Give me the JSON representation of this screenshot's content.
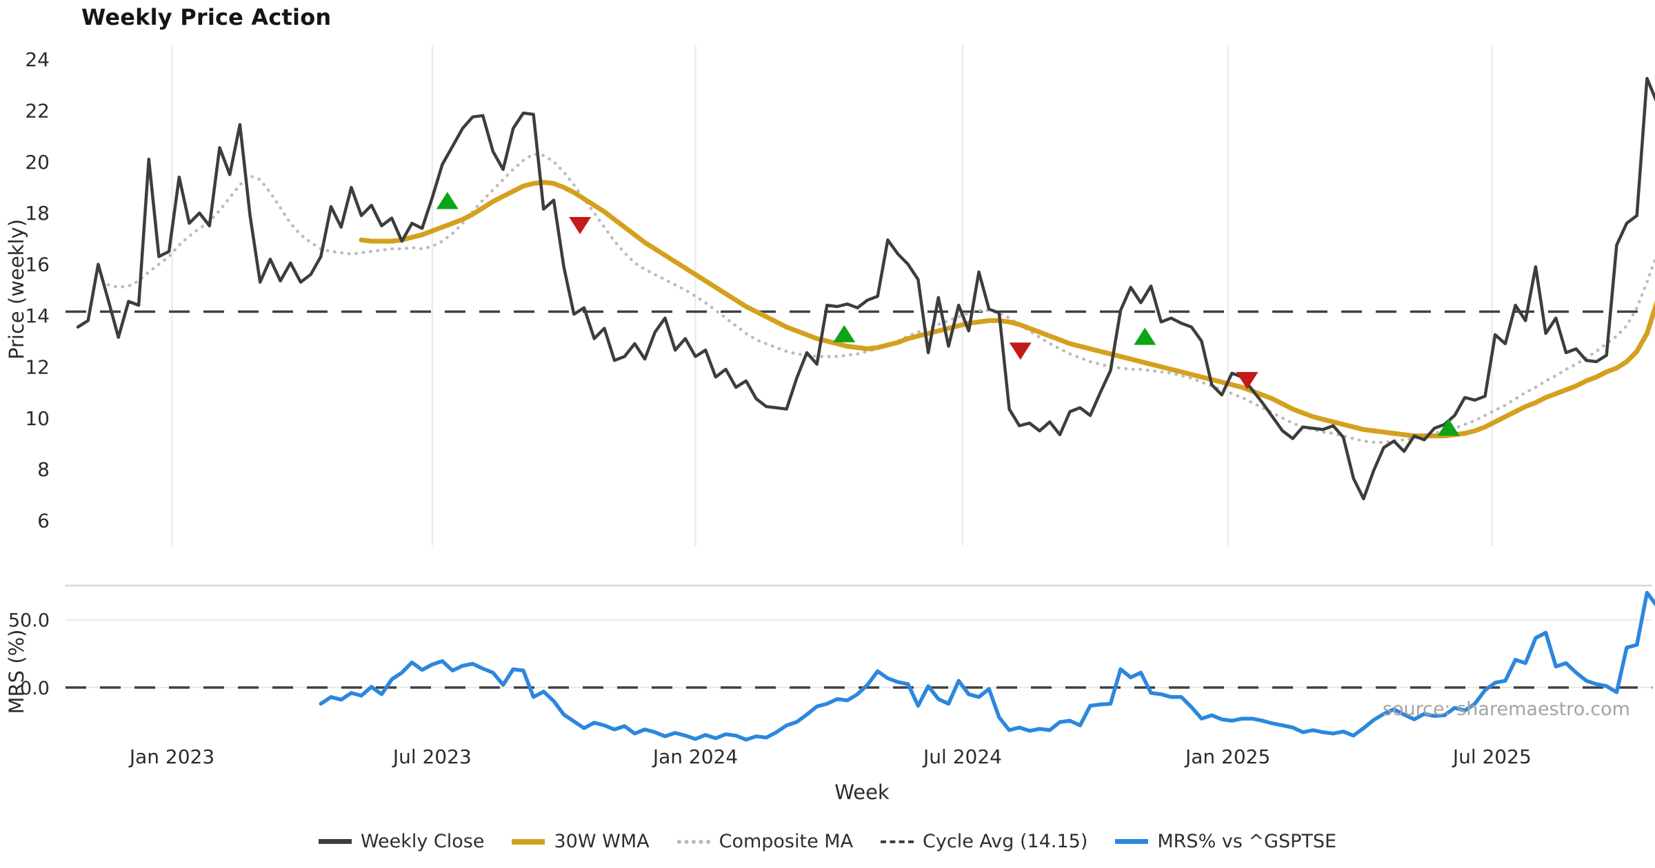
{
  "title": "Weekly Price Action",
  "source_note": "source: sharemaestro.com",
  "colors": {
    "weekly_close": "#3d3d3d",
    "wma_30w": "#d4a01e",
    "composite_ma": "#bcbcbc",
    "cycle_avg": "#3f3f3f",
    "mrs": "#2c87dd",
    "buy_marker": "#0fa318",
    "sell_marker": "#c41a1a",
    "gridline": "#e8e8e8",
    "separator": "#d8d8d8",
    "tick_text": "#2b2b2b",
    "source_text": "#a3a3a3"
  },
  "legend": {
    "items": [
      {
        "label": "Weekly Close",
        "style": "solid-dark"
      },
      {
        "label": "30W WMA",
        "style": "solid-gold"
      },
      {
        "label": "Composite MA",
        "style": "dotted-gray"
      },
      {
        "label": "Cycle Avg (14.15)",
        "style": "dashed-dark"
      },
      {
        "label": "MRS% vs ^GSPTSE",
        "style": "solid-blue"
      }
    ]
  },
  "chart_data": {
    "type": "line",
    "x_axis": {
      "label": "Week",
      "ticks": [
        {
          "week": 9.3,
          "label": "Jan 2023"
        },
        {
          "week": 35.0,
          "label": "Jul 2023"
        },
        {
          "week": 61.0,
          "label": "Jan 2024"
        },
        {
          "week": 87.4,
          "label": "Jul 2024"
        },
        {
          "week": 113.6,
          "label": "Jan 2025"
        },
        {
          "week": 139.7,
          "label": "Jul 2025"
        }
      ]
    },
    "price_panel": {
      "ylabel": "Price (weekly)",
      "yticks": [
        24,
        22,
        20,
        18,
        16,
        14,
        12,
        10,
        8,
        6
      ],
      "ylim": [
        5.5,
        24.5
      ],
      "cycle_avg": 14.15,
      "series": {
        "weekly_close": {
          "name": "Weekly Close",
          "start_week": 0,
          "values": [
            13.55,
            13.8,
            16.0,
            14.6,
            13.15,
            14.55,
            14.4,
            20.1,
            16.3,
            16.5,
            19.4,
            17.6,
            18.0,
            17.5,
            20.55,
            19.5,
            21.45,
            17.9,
            15.3,
            16.2,
            15.35,
            16.05,
            15.3,
            15.6,
            16.3,
            18.25,
            17.45,
            19.0,
            17.9,
            18.3,
            17.5,
            17.8,
            16.9,
            17.6,
            17.4,
            18.6,
            19.9,
            20.6,
            21.3,
            21.75,
            21.8,
            20.4,
            19.7,
            21.3,
            21.9,
            21.85,
            18.15,
            18.5,
            15.9,
            14.05,
            14.3,
            13.1,
            13.5,
            12.25,
            12.4,
            12.9,
            12.3,
            13.35,
            13.9,
            12.65,
            13.1,
            12.4,
            12.65,
            11.6,
            11.9,
            11.2,
            11.45,
            10.75,
            10.45,
            10.4,
            10.35,
            11.55,
            12.55,
            12.1,
            14.4,
            14.35,
            14.45,
            14.3,
            14.6,
            14.75,
            16.95,
            16.4,
            16.0,
            15.4,
            12.55,
            14.7,
            12.8,
            14.4,
            13.4,
            15.7,
            14.25,
            14.1,
            10.35,
            9.7,
            9.8,
            9.5,
            9.85,
            9.35,
            10.25,
            10.4,
            10.1,
            11.0,
            11.85,
            14.2,
            15.1,
            14.5,
            15.15,
            13.75,
            13.9,
            13.7,
            13.55,
            13.0,
            11.3,
            10.9,
            11.75,
            11.6,
            11.1,
            10.6,
            10.05,
            9.5,
            9.2,
            9.65,
            9.6,
            9.55,
            9.7,
            9.25,
            7.65,
            6.85,
            7.95,
            8.85,
            9.1,
            8.7,
            9.3,
            9.15,
            9.6,
            9.75,
            10.1,
            10.8,
            10.7,
            10.85,
            13.25,
            12.9,
            14.4,
            13.8,
            15.9,
            13.3,
            13.9,
            12.55,
            12.7,
            12.25,
            12.2,
            12.45,
            16.75,
            17.6,
            17.9,
            23.25,
            22.3
          ]
        },
        "wma_30w": {
          "name": "30W WMA",
          "start_week": 28,
          "values": [
            16.95,
            16.9,
            16.9,
            16.9,
            16.95,
            17.05,
            17.15,
            17.3,
            17.45,
            17.6,
            17.75,
            17.95,
            18.2,
            18.45,
            18.65,
            18.85,
            19.05,
            19.15,
            19.2,
            19.15,
            19.0,
            18.8,
            18.55,
            18.3,
            18.05,
            17.75,
            17.45,
            17.15,
            16.85,
            16.6,
            16.35,
            16.1,
            15.85,
            15.6,
            15.35,
            15.1,
            14.85,
            14.6,
            14.35,
            14.15,
            13.95,
            13.75,
            13.55,
            13.4,
            13.25,
            13.1,
            13.0,
            12.9,
            12.8,
            12.75,
            12.7,
            12.75,
            12.85,
            12.95,
            13.1,
            13.2,
            13.3,
            13.4,
            13.5,
            13.6,
            13.7,
            13.75,
            13.8,
            13.8,
            13.75,
            13.65,
            13.5,
            13.35,
            13.2,
            13.05,
            12.9,
            12.8,
            12.7,
            12.6,
            12.5,
            12.4,
            12.3,
            12.2,
            12.1,
            12.0,
            11.9,
            11.8,
            11.7,
            11.6,
            11.5,
            11.4,
            11.3,
            11.2,
            11.05,
            10.9,
            10.75,
            10.55,
            10.35,
            10.2,
            10.05,
            9.95,
            9.85,
            9.75,
            9.65,
            9.55,
            9.5,
            9.45,
            9.4,
            9.35,
            9.3,
            9.3,
            9.3,
            9.3,
            9.35,
            9.4,
            9.5,
            9.65,
            9.85,
            10.05,
            10.25,
            10.45,
            10.6,
            10.8,
            10.95,
            11.1,
            11.25,
            11.45,
            11.6,
            11.8,
            11.95,
            12.2,
            12.6,
            13.3,
            14.55
          ]
        },
        "composite_ma": {
          "name": "Composite MA",
          "start_week": 3,
          "values": [
            15.2,
            15.1,
            15.15,
            15.35,
            15.7,
            16.0,
            16.3,
            16.75,
            17.1,
            17.4,
            17.65,
            18.1,
            18.6,
            19.1,
            19.45,
            19.3,
            18.8,
            18.2,
            17.6,
            17.15,
            16.85,
            16.6,
            16.5,
            16.45,
            16.4,
            16.45,
            16.5,
            16.55,
            16.6,
            16.6,
            16.65,
            16.6,
            16.7,
            16.9,
            17.2,
            17.6,
            18.05,
            18.5,
            18.9,
            19.3,
            19.7,
            20.05,
            20.3,
            20.25,
            20.0,
            19.6,
            19.1,
            18.55,
            18.0,
            17.45,
            16.9,
            16.45,
            16.05,
            15.8,
            15.6,
            15.4,
            15.2,
            15.0,
            14.75,
            14.5,
            14.2,
            13.9,
            13.6,
            13.3,
            13.05,
            12.9,
            12.75,
            12.6,
            12.5,
            12.45,
            12.4,
            12.4,
            12.4,
            12.45,
            12.5,
            12.6,
            12.7,
            12.85,
            13.0,
            13.2,
            13.35,
            13.5,
            13.65,
            13.8,
            13.95,
            14.1,
            14.2,
            14.2,
            14.1,
            13.9,
            13.65,
            13.4,
            13.15,
            12.9,
            12.7,
            12.5,
            12.35,
            12.2,
            12.1,
            12.0,
            11.95,
            11.9,
            11.9,
            11.85,
            11.8,
            11.75,
            11.65,
            11.55,
            11.4,
            11.25,
            11.1,
            10.95,
            10.8,
            10.6,
            10.4,
            10.2,
            10.0,
            9.8,
            9.65,
            9.55,
            9.45,
            9.4,
            9.3,
            9.2,
            9.1,
            9.05,
            9.05,
            9.1,
            9.15,
            9.2,
            9.3,
            9.4,
            9.5,
            9.6,
            9.75,
            9.9,
            10.1,
            10.3,
            10.5,
            10.75,
            11.0,
            11.2,
            11.45,
            11.65,
            11.9,
            12.1,
            12.35,
            12.6,
            12.9,
            13.2,
            13.6,
            14.3,
            15.3,
            16.4
          ]
        }
      },
      "buy_signals": [
        {
          "week": 36.5,
          "price": 18.45
        },
        {
          "week": 75.7,
          "price": 13.25
        },
        {
          "week": 105.4,
          "price": 13.15
        },
        {
          "week": 135.4,
          "price": 9.6
        }
      ],
      "sell_signals": [
        {
          "week": 49.6,
          "price": 17.55
        },
        {
          "week": 93.1,
          "price": 12.65
        },
        {
          "week": 115.5,
          "price": 11.5
        }
      ]
    },
    "mrs_panel": {
      "ylabel": "MRS (%)",
      "yticks": [
        {
          "value": 50,
          "label": "50.0"
        },
        {
          "value": 0,
          "label": "0.0"
        }
      ],
      "zero_line": 0,
      "series": {
        "mrs_pct": {
          "name": "MRS% vs ^GSPTSE",
          "start_week": 24,
          "values": [
            -12,
            -7,
            -9,
            -4,
            -6,
            0.5,
            -5,
            6,
            11,
            18.5,
            13,
            17,
            19.5,
            12.5,
            16,
            17.5,
            14,
            11,
            2,
            13.5,
            12.5,
            -7,
            -3,
            -10,
            -20,
            -25,
            -30,
            -26,
            -28,
            -31,
            -28.5,
            -34,
            -31,
            -33,
            -36,
            -33.5,
            -35.5,
            -38,
            -35,
            -37.5,
            -34.5,
            -35.5,
            -38.5,
            -36,
            -37,
            -33,
            -28,
            -25.5,
            -20,
            -14,
            -12,
            -8.5,
            -9.5,
            -5,
            2,
            12,
            6.8,
            4,
            2.5,
            -13.5,
            1,
            -8.5,
            -12,
            5,
            -5,
            -7,
            -1,
            -22,
            -31.5,
            -29.5,
            -32,
            -30.5,
            -31.5,
            -25.5,
            -24.5,
            -28,
            -13.5,
            -12.5,
            -12,
            13.5,
            7.5,
            11,
            -4,
            -5,
            -7,
            -7,
            -14.5,
            -23,
            -20.5,
            -23.5,
            -24.5,
            -23,
            -23,
            -24.5,
            -26.5,
            -28,
            -29.5,
            -33,
            -31.5,
            -33,
            -34,
            -32.5,
            -35.5,
            -30,
            -24,
            -19.5,
            -16,
            -20,
            -23.5,
            -19.5,
            -21,
            -20.5,
            -15,
            -17,
            -12,
            -2,
            3.5,
            5,
            20.5,
            18,
            36.5,
            40.5,
            15.5,
            18,
            11,
            5,
            2.5,
            1,
            -3.5,
            29.5,
            31.5,
            70,
            60
          ]
        }
      }
    }
  }
}
